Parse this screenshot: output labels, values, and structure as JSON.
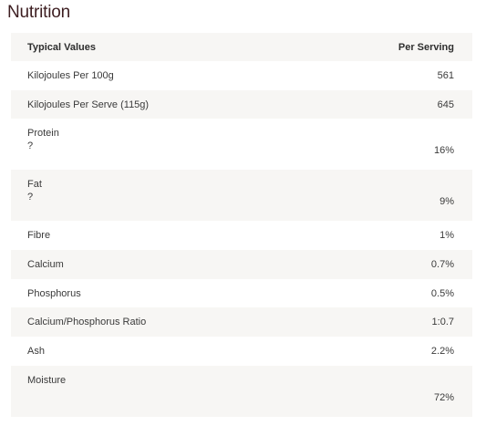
{
  "title": "Nutrition",
  "header": {
    "col_label": "Typical Values",
    "col_value": "Per Serving"
  },
  "rows": [
    {
      "label": "Kilojoules Per 100g",
      "sub": "",
      "value": "561"
    },
    {
      "label": "Kilojoules Per Serve (115g)",
      "sub": "",
      "value": "645"
    },
    {
      "label": "Protein",
      "sub": "?",
      "value": "16%"
    },
    {
      "label": "Fat",
      "sub": "?",
      "value": "9%"
    },
    {
      "label": "Fibre",
      "sub": "",
      "value": "1%"
    },
    {
      "label": "Calcium",
      "sub": "",
      "value": "0.7%"
    },
    {
      "label": "Phosphorus",
      "sub": "",
      "value": "0.5%"
    },
    {
      "label": "Calcium/Phosphorus Ratio",
      "sub": "",
      "value": "1:0.7"
    },
    {
      "label": "Ash",
      "sub": "",
      "value": "2.2%"
    },
    {
      "label": "Moisture",
      "sub": "",
      "value": "72%"
    }
  ],
  "colors": {
    "title": "#3d1e21",
    "row_alt_bg": "#f7f6f4",
    "text": "#3a3a3a"
  }
}
